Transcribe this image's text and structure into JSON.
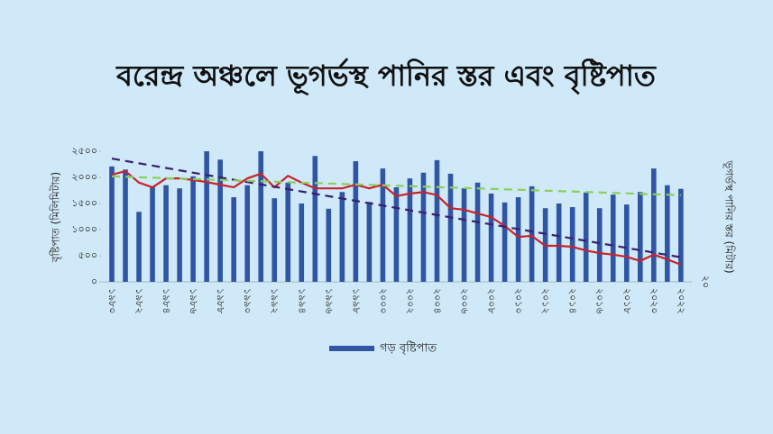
{
  "chart_data": {
    "type": "bar",
    "title": "বরেন্দ্র অঞ্চলে ভূগর্ভস্থ পানির স্তর এবং বৃষ্টিপাত",
    "y_label": "বৃষ্টিপাত (মিলিমিটার)",
    "y2_label": "ভূগর্ভস্থ পানির স্তর (মিটার)",
    "categories": [
      "১৯৮০",
      null,
      "১৯৮২",
      null,
      "১৯৮৪",
      null,
      "১৯৮৬",
      null,
      "১৯৮৮",
      null,
      "১৯৯০",
      null,
      "১৯৯২",
      null,
      "১৯৯৪",
      null,
      "১৯৯৬",
      null,
      "১৯৯৮",
      null,
      "২০০০",
      null,
      "২০০২",
      null,
      "২০০৪",
      null,
      "২০০৬",
      null,
      "২০০৮",
      null,
      "২০১০",
      null,
      "২০১২",
      null,
      "২০১৪",
      null,
      "২০১৬",
      null,
      "২০১৮",
      null,
      "২০২০",
      null,
      "২০২২"
    ],
    "series": [
      {
        "name": "গড় বৃষ্টিপাত",
        "color": "#2f55a4",
        "values": [
          2210,
          2150,
          1340,
          1830,
          1850,
          1790,
          2020,
          2500,
          2340,
          1620,
          1850,
          2500,
          1600,
          1900,
          1500,
          2410,
          1400,
          1720,
          2310,
          1530,
          2170,
          1810,
          1980,
          2090,
          2330,
          2070,
          1790,
          1900,
          1690,
          1520,
          1620,
          1830,
          1410,
          1500,
          1430,
          1710,
          1410,
          1670,
          1480,
          1720,
          2170,
          1850,
          1780
        ]
      },
      {
        "color": "#c8232c",
        "axis": "y2",
        "values": [
          40.5,
          41.2,
          39,
          38.1,
          39.8,
          39.8,
          39.5,
          39.1,
          38.6,
          38.1,
          39.8,
          40.7,
          38.1,
          40.3,
          39,
          37.9,
          37.9,
          37.9,
          38.6,
          37.9,
          38.6,
          36.4,
          36.9,
          37.2,
          36.6,
          34.1,
          33.8,
          33.1,
          32.4,
          30.7,
          28.6,
          28.8,
          26.9,
          26.9,
          26.7,
          26,
          25.5,
          25.2,
          24.8,
          24,
          25.2,
          24.3,
          23.3
        ]
      }
    ],
    "trend_lines": [
      {
        "color": "#3a1f6e",
        "axis": "y2",
        "values": [
          43.6,
          24.7
        ]
      },
      {
        "color": "#8ccf5a",
        "values": [
          2020,
          1660
        ]
      }
    ],
    "ylim": [
      0,
      2500
    ],
    "yticks": [
      {
        "value": 0,
        "label": "০"
      },
      {
        "value": 500,
        "label": "৫০০"
      },
      {
        "value": 1000,
        "label": "১০০০"
      },
      {
        "value": 1500,
        "label": "১৫০০"
      },
      {
        "value": 2000,
        "label": "২০০০"
      },
      {
        "value": 2500,
        "label": "২৫০০"
      }
    ],
    "y2lim": [
      20,
      45
    ],
    "y2ticks": [
      {
        "value": 20,
        "label": "২০"
      }
    ],
    "legend": "bottom"
  }
}
